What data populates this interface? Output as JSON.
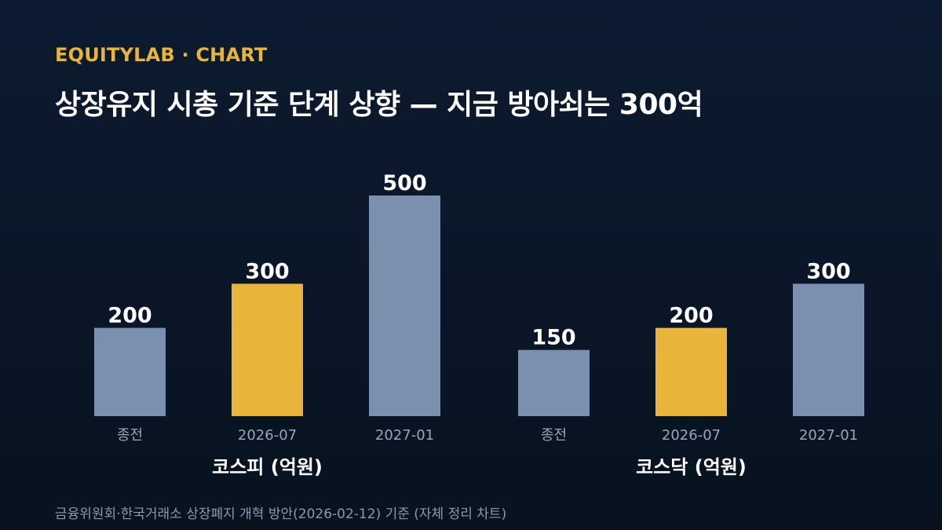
{
  "header": {
    "brand": "EQUITYLAB · CHART",
    "title": "상장유지 시총 기준 단계 상향 — 지금 방아쇠는 300억"
  },
  "footer": {
    "source": "금융위원회·한국거래소 상장폐지 개혁 방안(2026-02-12) 기준 (자체 정리 차트)"
  },
  "colors": {
    "bar_default": "#7b8fae",
    "bar_highlight": "#e8b43a",
    "value_label": "#ffffff",
    "tick_label": "#9aa6b8",
    "group_label": "#ffffff"
  },
  "chart_data": {
    "type": "bar",
    "title": "",
    "ylabel": "",
    "grid": false,
    "legend": "none",
    "ylim": [
      0,
      500
    ],
    "groups": [
      {
        "label": "코스피 (억원)",
        "categories": [
          "종전",
          "2026-07",
          "2027-01"
        ],
        "values": [
          200,
          300,
          500
        ],
        "highlight": [
          false,
          true,
          false
        ]
      },
      {
        "label": "코스닥 (억원)",
        "categories": [
          "종전",
          "2026-07",
          "2027-01"
        ],
        "values": [
          150,
          200,
          300
        ],
        "highlight": [
          false,
          true,
          false
        ]
      }
    ]
  }
}
